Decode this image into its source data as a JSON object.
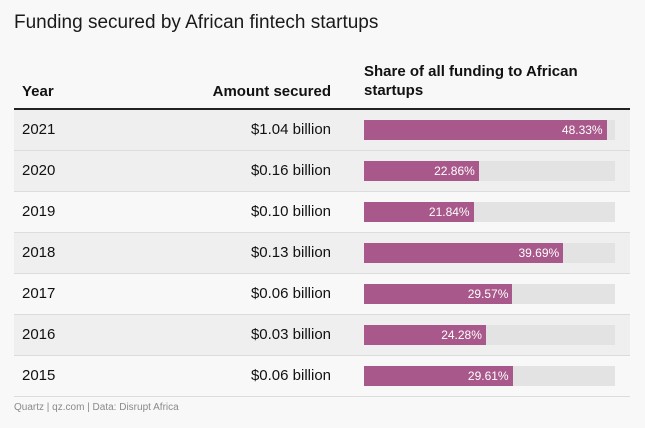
{
  "title": "Funding secured by African fintech startups",
  "headers": {
    "year": "Year",
    "amount": "Amount secured",
    "share": "Share of all funding to African startups"
  },
  "rows": [
    {
      "year": "2021",
      "amount": "$1.04 billion",
      "share_label": "48.33%"
    },
    {
      "year": "2020",
      "amount": "$0.16 billion",
      "share_label": "22.86%"
    },
    {
      "year": "2019",
      "amount": "$0.10 billion",
      "share_label": "21.84%"
    },
    {
      "year": "2018",
      "amount": "$0.13 billion",
      "share_label": "39.69%"
    },
    {
      "year": "2017",
      "amount": "$0.06 billion",
      "share_label": "29.57%"
    },
    {
      "year": "2016",
      "amount": "$0.03 billion",
      "share_label": "24.28%"
    },
    {
      "year": "2015",
      "amount": "$0.06 billion",
      "share_label": "29.61%"
    }
  ],
  "source": "Quartz | qz.com | Data: Disrupt Africa",
  "chart_data": {
    "type": "table",
    "title": "Funding secured by African fintech startups",
    "columns": [
      "Year",
      "Amount secured",
      "Share of all funding to African startups"
    ],
    "categories": [
      "2021",
      "2020",
      "2019",
      "2018",
      "2017",
      "2016",
      "2015"
    ],
    "amount_billion_usd": [
      1.04,
      0.16,
      0.1,
      0.13,
      0.06,
      0.03,
      0.06
    ],
    "share_percent": [
      48.33,
      22.86,
      21.84,
      39.69,
      29.57,
      24.28,
      29.61
    ],
    "bar_max_percent": 50,
    "colors": {
      "bar": "#a8588a",
      "track": "#e3e3e3"
    }
  }
}
